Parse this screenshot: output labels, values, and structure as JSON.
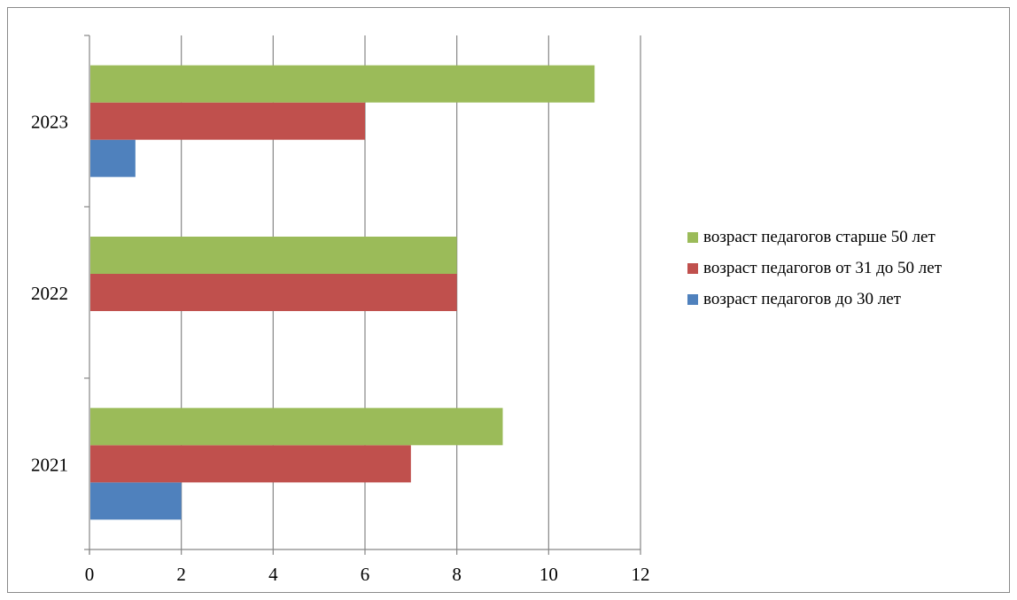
{
  "chart_data": {
    "type": "bar",
    "orientation": "horizontal",
    "categories": [
      "2021",
      "2022",
      "2023"
    ],
    "series": [
      {
        "name": "возраст педагогов до 30 лет",
        "color": "#4F81BD",
        "values": [
          2,
          0,
          1
        ]
      },
      {
        "name": "возраст педагогов от 31 до 50 лет",
        "color": "#C0504D",
        "values": [
          7,
          8,
          6
        ]
      },
      {
        "name": "возраст педагогов старше 50 лет",
        "color": "#9BBB59",
        "values": [
          9,
          8,
          11
        ]
      }
    ],
    "xlim": [
      0,
      12
    ],
    "xticks": [
      "0",
      "2",
      "4",
      "6",
      "8",
      "10",
      "12"
    ],
    "grid": "vertical",
    "legend_position": "right",
    "title": "",
    "xlabel": "",
    "ylabel": ""
  },
  "legend": {
    "items": [
      {
        "label": "возраст педагогов старше 50 лет",
        "color": "#9BBB59"
      },
      {
        "label": "возраст педагогов от 31 до 50 лет",
        "color": "#C0504D"
      },
      {
        "label": "возраст педагогов до 30 лет",
        "color": "#4F81BD"
      }
    ]
  }
}
